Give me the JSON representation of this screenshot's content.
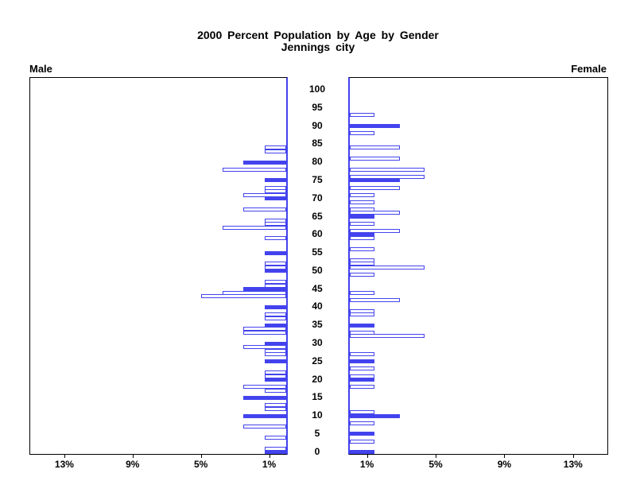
{
  "title": {
    "line1": "2000 Percent Population by Age by Gender",
    "line2": "Jennings city"
  },
  "side_labels": {
    "left": "Male",
    "right": "Female"
  },
  "colors": {
    "bar_blue": "#4343ee",
    "axis_black": "#000000",
    "background": "#ffffff"
  },
  "axes": {
    "age_tick_labels": [
      100,
      95,
      90,
      85,
      80,
      75,
      70,
      65,
      60,
      55,
      50,
      45,
      40,
      35,
      30,
      25,
      20,
      15,
      10,
      5,
      0
    ],
    "age_axis_top": 103.3,
    "age_axis_bottom": -0.5,
    "pct_axis_max": 15,
    "male_pct_ticks": [
      {
        "pct": 13,
        "label": "13%"
      },
      {
        "pct": 9,
        "label": "9%"
      },
      {
        "pct": 5,
        "label": "5%"
      },
      {
        "pct": 1,
        "label": "1%"
      }
    ],
    "female_pct_ticks": [
      {
        "pct": 1,
        "label": "1%"
      },
      {
        "pct": 5,
        "label": "5%"
      },
      {
        "pct": 9,
        "label": "9%"
      },
      {
        "pct": 13,
        "label": "13%"
      }
    ]
  },
  "chart_data": {
    "type": "bar",
    "subtype": "population-pyramid",
    "title": "2000 Percent Population by Age by Gender",
    "subtitle": "Jennings city",
    "x_unit": "percent of population",
    "y_unit": "single year of age",
    "note_filled_bars": "bars at ages that are multiples of 5 are solid blue; other ages are hollow with blue outline",
    "male": [
      {
        "age": 84,
        "pct": 1.25,
        "filled": false
      },
      {
        "age": 83,
        "pct": 1.25,
        "filled": false
      },
      {
        "age": 80,
        "pct": 2.5,
        "filled": true
      },
      {
        "age": 78,
        "pct": 3.75,
        "filled": false
      },
      {
        "age": 75,
        "pct": 1.25,
        "filled": true
      },
      {
        "age": 73,
        "pct": 1.25,
        "filled": false
      },
      {
        "age": 72,
        "pct": 1.25,
        "filled": false
      },
      {
        "age": 71,
        "pct": 2.5,
        "filled": false
      },
      {
        "age": 70,
        "pct": 1.25,
        "filled": true
      },
      {
        "age": 67,
        "pct": 2.5,
        "filled": false
      },
      {
        "age": 64,
        "pct": 1.25,
        "filled": false
      },
      {
        "age": 63,
        "pct": 1.25,
        "filled": false
      },
      {
        "age": 62,
        "pct": 3.75,
        "filled": false
      },
      {
        "age": 59,
        "pct": 1.25,
        "filled": false
      },
      {
        "age": 55,
        "pct": 1.25,
        "filled": true
      },
      {
        "age": 52,
        "pct": 1.25,
        "filled": false
      },
      {
        "age": 51,
        "pct": 1.25,
        "filled": false
      },
      {
        "age": 50,
        "pct": 1.25,
        "filled": true
      },
      {
        "age": 47,
        "pct": 1.25,
        "filled": false
      },
      {
        "age": 46,
        "pct": 1.25,
        "filled": false
      },
      {
        "age": 45,
        "pct": 2.5,
        "filled": true
      },
      {
        "age": 44,
        "pct": 3.75,
        "filled": false
      },
      {
        "age": 43,
        "pct": 5.0,
        "filled": false
      },
      {
        "age": 40,
        "pct": 1.25,
        "filled": true
      },
      {
        "age": 38,
        "pct": 1.25,
        "filled": false
      },
      {
        "age": 37,
        "pct": 1.25,
        "filled": false
      },
      {
        "age": 35,
        "pct": 1.25,
        "filled": true
      },
      {
        "age": 34,
        "pct": 2.5,
        "filled": false
      },
      {
        "age": 33,
        "pct": 2.5,
        "filled": false
      },
      {
        "age": 30,
        "pct": 1.25,
        "filled": true
      },
      {
        "age": 29,
        "pct": 2.5,
        "filled": false
      },
      {
        "age": 28,
        "pct": 1.25,
        "filled": false
      },
      {
        "age": 27,
        "pct": 1.25,
        "filled": false
      },
      {
        "age": 25,
        "pct": 1.25,
        "filled": true
      },
      {
        "age": 22,
        "pct": 1.25,
        "filled": false
      },
      {
        "age": 21,
        "pct": 1.25,
        "filled": false
      },
      {
        "age": 20,
        "pct": 1.25,
        "filled": true
      },
      {
        "age": 18,
        "pct": 2.5,
        "filled": false
      },
      {
        "age": 17,
        "pct": 1.25,
        "filled": false
      },
      {
        "age": 15,
        "pct": 2.5,
        "filled": true
      },
      {
        "age": 13,
        "pct": 1.25,
        "filled": false
      },
      {
        "age": 12,
        "pct": 1.25,
        "filled": false
      },
      {
        "age": 10,
        "pct": 2.5,
        "filled": true
      },
      {
        "age": 7,
        "pct": 2.5,
        "filled": false
      },
      {
        "age": 4,
        "pct": 1.25,
        "filled": false
      },
      {
        "age": 1,
        "pct": 1.25,
        "filled": false
      },
      {
        "age": 0,
        "pct": 1.25,
        "filled": true
      }
    ],
    "female": [
      {
        "age": 93,
        "pct": 1.45,
        "filled": false
      },
      {
        "age": 90,
        "pct": 2.9,
        "filled": true
      },
      {
        "age": 88,
        "pct": 1.45,
        "filled": false
      },
      {
        "age": 84,
        "pct": 2.9,
        "filled": false
      },
      {
        "age": 81,
        "pct": 2.9,
        "filled": false
      },
      {
        "age": 78,
        "pct": 4.35,
        "filled": false
      },
      {
        "age": 76,
        "pct": 4.35,
        "filled": false
      },
      {
        "age": 75,
        "pct": 2.9,
        "filled": true
      },
      {
        "age": 73,
        "pct": 2.9,
        "filled": false
      },
      {
        "age": 71,
        "pct": 1.45,
        "filled": false
      },
      {
        "age": 69,
        "pct": 1.45,
        "filled": false
      },
      {
        "age": 67,
        "pct": 1.45,
        "filled": false
      },
      {
        "age": 66,
        "pct": 2.9,
        "filled": false
      },
      {
        "age": 65,
        "pct": 1.45,
        "filled": true
      },
      {
        "age": 63,
        "pct": 1.45,
        "filled": false
      },
      {
        "age": 61,
        "pct": 2.9,
        "filled": false
      },
      {
        "age": 60,
        "pct": 1.45,
        "filled": true
      },
      {
        "age": 59,
        "pct": 1.45,
        "filled": false
      },
      {
        "age": 56,
        "pct": 1.45,
        "filled": false
      },
      {
        "age": 53,
        "pct": 1.45,
        "filled": false
      },
      {
        "age": 52,
        "pct": 1.45,
        "filled": false
      },
      {
        "age": 51,
        "pct": 4.35,
        "filled": false
      },
      {
        "age": 49,
        "pct": 1.45,
        "filled": false
      },
      {
        "age": 44,
        "pct": 1.45,
        "filled": false
      },
      {
        "age": 42,
        "pct": 2.9,
        "filled": false
      },
      {
        "age": 39,
        "pct": 1.45,
        "filled": false
      },
      {
        "age": 38,
        "pct": 1.45,
        "filled": false
      },
      {
        "age": 35,
        "pct": 1.45,
        "filled": true
      },
      {
        "age": 33,
        "pct": 1.45,
        "filled": false
      },
      {
        "age": 32,
        "pct": 4.35,
        "filled": false
      },
      {
        "age": 27,
        "pct": 1.45,
        "filled": false
      },
      {
        "age": 25,
        "pct": 1.45,
        "filled": true
      },
      {
        "age": 23,
        "pct": 1.45,
        "filled": false
      },
      {
        "age": 21,
        "pct": 1.45,
        "filled": false
      },
      {
        "age": 20,
        "pct": 1.45,
        "filled": true
      },
      {
        "age": 18,
        "pct": 1.45,
        "filled": false
      },
      {
        "age": 11,
        "pct": 1.45,
        "filled": false
      },
      {
        "age": 10,
        "pct": 2.9,
        "filled": true
      },
      {
        "age": 8,
        "pct": 1.45,
        "filled": false
      },
      {
        "age": 5,
        "pct": 1.45,
        "filled": true
      },
      {
        "age": 3,
        "pct": 1.45,
        "filled": false
      },
      {
        "age": 0,
        "pct": 1.45,
        "filled": true
      }
    ]
  }
}
